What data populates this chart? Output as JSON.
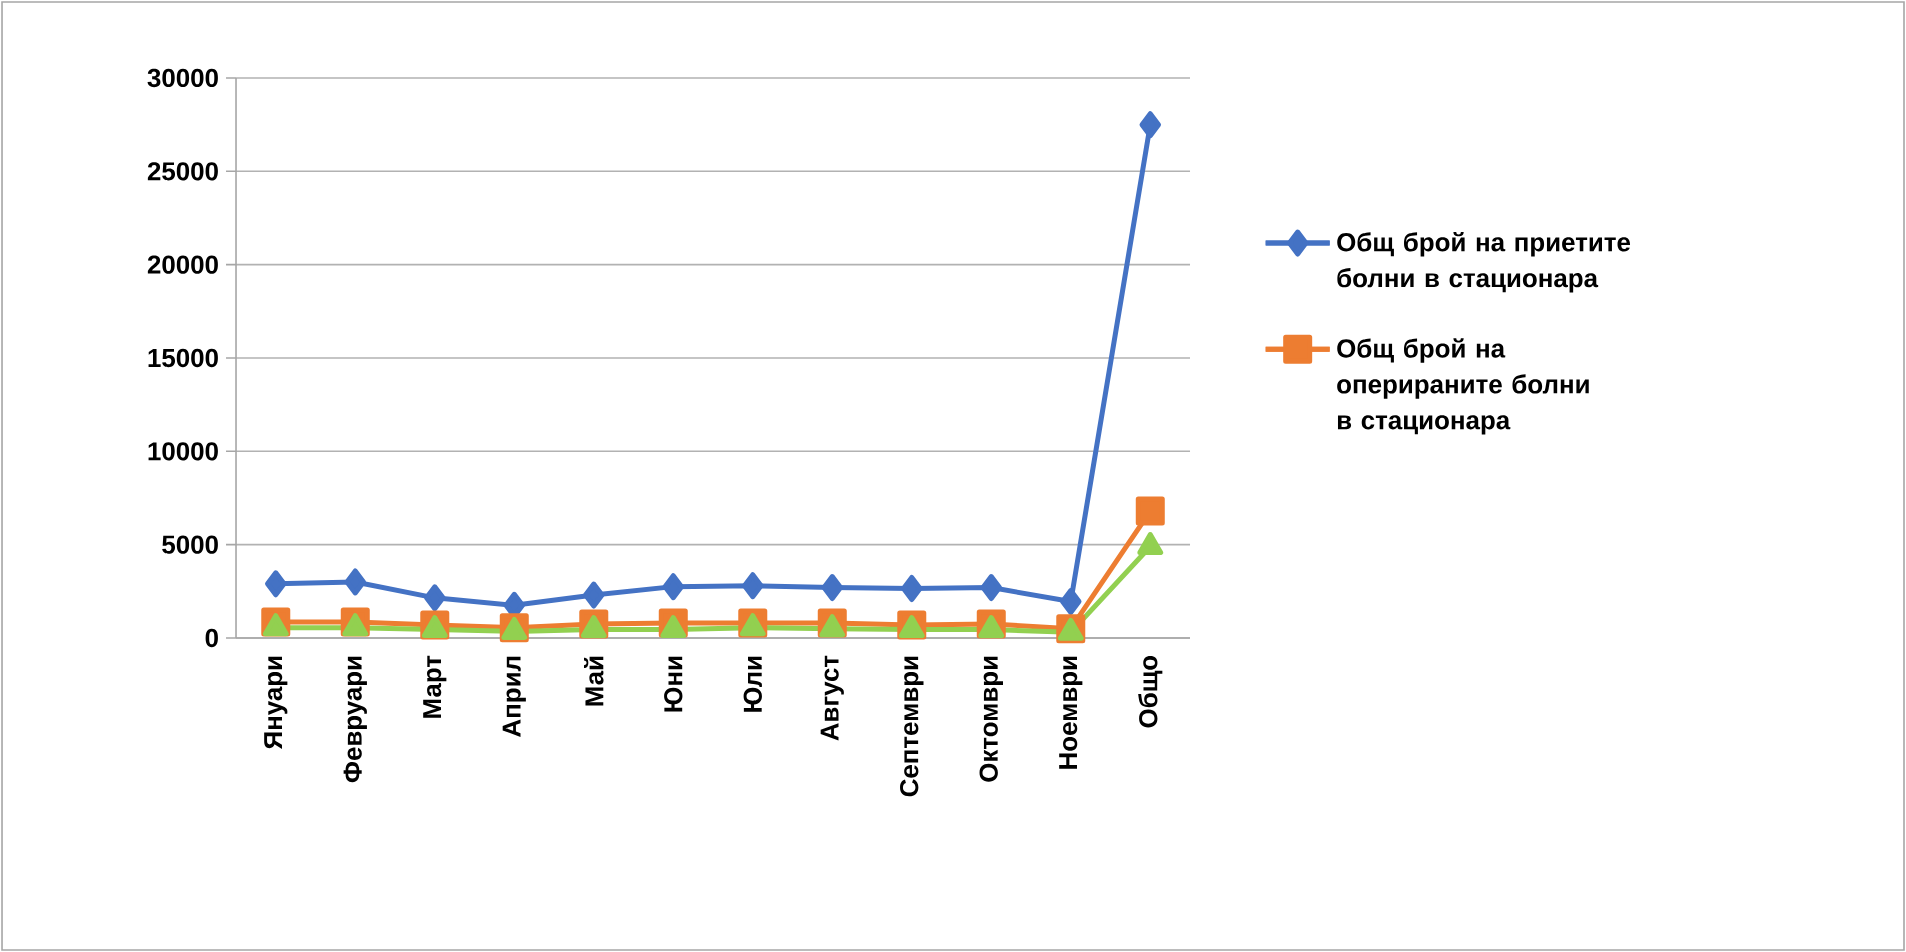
{
  "chart_data": {
    "type": "line",
    "categories": [
      "Януари",
      "Февруари",
      "Март",
      "Април",
      "Май",
      "Юни",
      "Юли",
      "Август",
      "Септември",
      "Октомври",
      "Ноември",
      "Общо"
    ],
    "series": [
      {
        "name": "Общ брой на приетите болни в стационара",
        "color": "#4472c4",
        "marker": "diamond",
        "values": [
          2900,
          3000,
          2150,
          1750,
          2300,
          2750,
          2800,
          2700,
          2650,
          2700,
          1950,
          27500
        ]
      },
      {
        "name": "Общ брой на оперираните болни в стационара",
        "color": "#ed7d31",
        "marker": "square",
        "values": [
          850,
          850,
          700,
          550,
          750,
          800,
          800,
          800,
          700,
          750,
          500,
          6800
        ]
      },
      {
        "color": "#92d050",
        "marker": "triangle",
        "values": [
          550,
          550,
          450,
          350,
          450,
          450,
          550,
          500,
          450,
          450,
          300,
          4900
        ]
      }
    ],
    "ylim": [
      0,
      30000
    ],
    "yticks": [
      0,
      5000,
      10000,
      15000,
      20000,
      25000,
      30000
    ],
    "grid": "y",
    "legend": "right"
  }
}
